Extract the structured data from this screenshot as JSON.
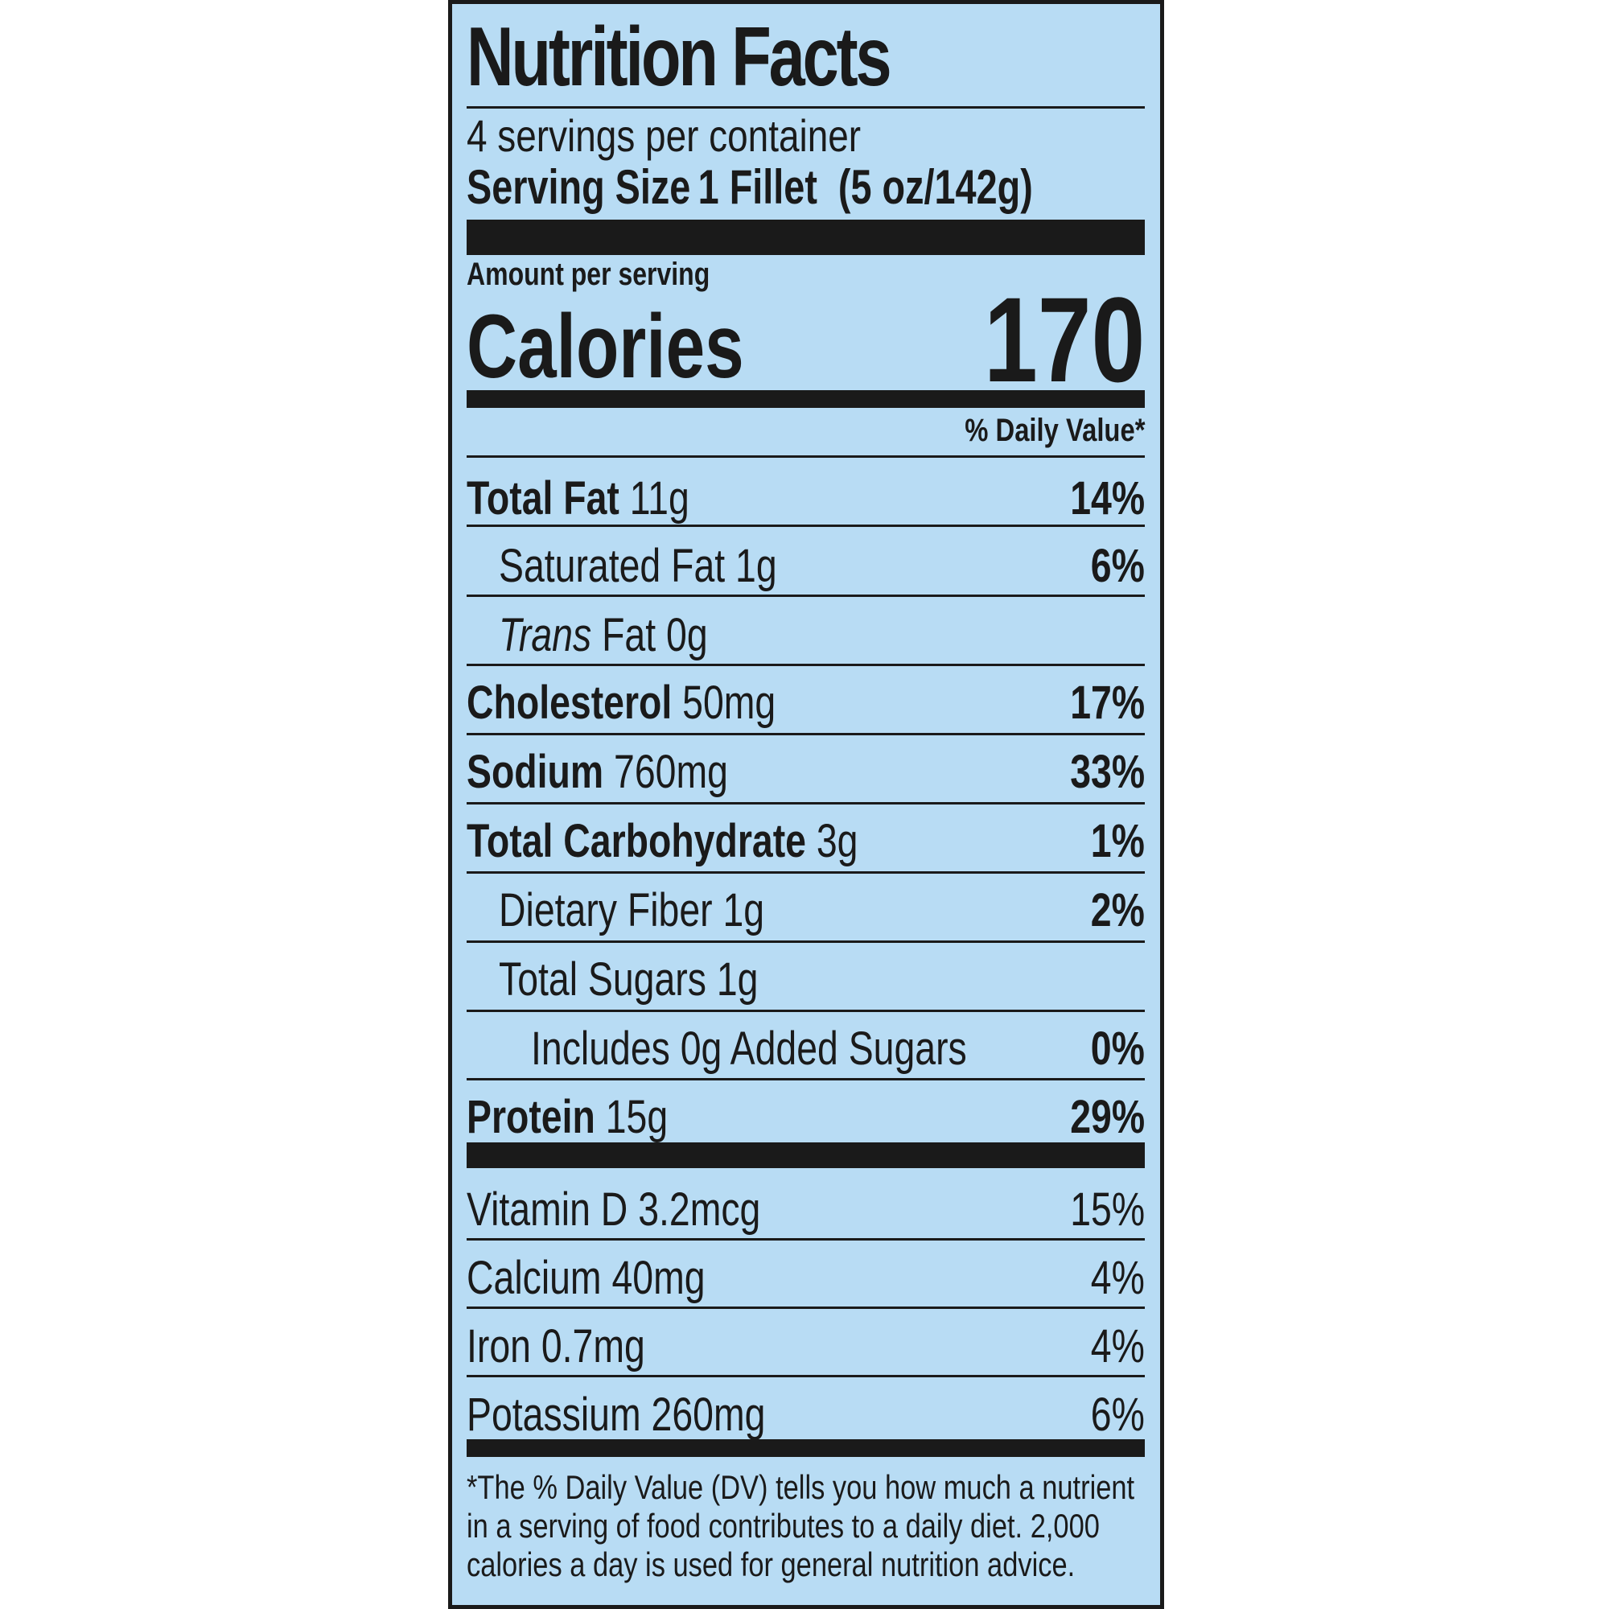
{
  "label": {
    "title": "Nutrition Facts",
    "servings_per_container": "4 servings per container",
    "serving_size_label": "Serving Size",
    "serving_size_value": "1 Fillet  (5 oz/142g)",
    "amount_per_serving": "Amount per serving",
    "calories_label": "Calories",
    "calories_value": "170",
    "daily_value_header": "% Daily Value*",
    "nutrients": [
      {
        "name": "Total Fat",
        "amount": "11g",
        "dv": "14%"
      },
      {
        "name": "Saturated Fat",
        "amount": "1g",
        "dv": "6%"
      },
      {
        "name_italic": "Trans",
        "name": "Fat",
        "amount": "0g",
        "dv": ""
      },
      {
        "name": "Cholesterol",
        "amount": "50mg",
        "dv": "17%"
      },
      {
        "name": "Sodium",
        "amount": "760mg",
        "dv": "33%"
      },
      {
        "name": "Total Carbohydrate",
        "amount": "3g",
        "dv": "1%"
      },
      {
        "name": "Dietary Fiber",
        "amount": "1g",
        "dv": "2%"
      },
      {
        "name": "Total Sugars",
        "amount": "1g",
        "dv": ""
      },
      {
        "name": "Includes 0g Added Sugars",
        "amount": "",
        "dv": "0%"
      },
      {
        "name": "Protein",
        "amount": "15g",
        "dv": "29%"
      }
    ],
    "vitamins": [
      {
        "name": "Vitamin D",
        "amount": "3.2mcg",
        "dv": "15%"
      },
      {
        "name": "Calcium",
        "amount": "40mg",
        "dv": "4%"
      },
      {
        "name": "Iron",
        "amount": "0.7mg",
        "dv": "4%"
      },
      {
        "name": "Potassium",
        "amount": "260mg",
        "dv": "6%"
      }
    ],
    "footnote": "*The % Daily Value (DV) tells you how much a nutrient in a serving of food contributes to a daily diet. 2,000 calories a day is used for general nutrition advice.",
    "background_color": "#b8dcf4",
    "ink_color": "#1a1a1a"
  }
}
